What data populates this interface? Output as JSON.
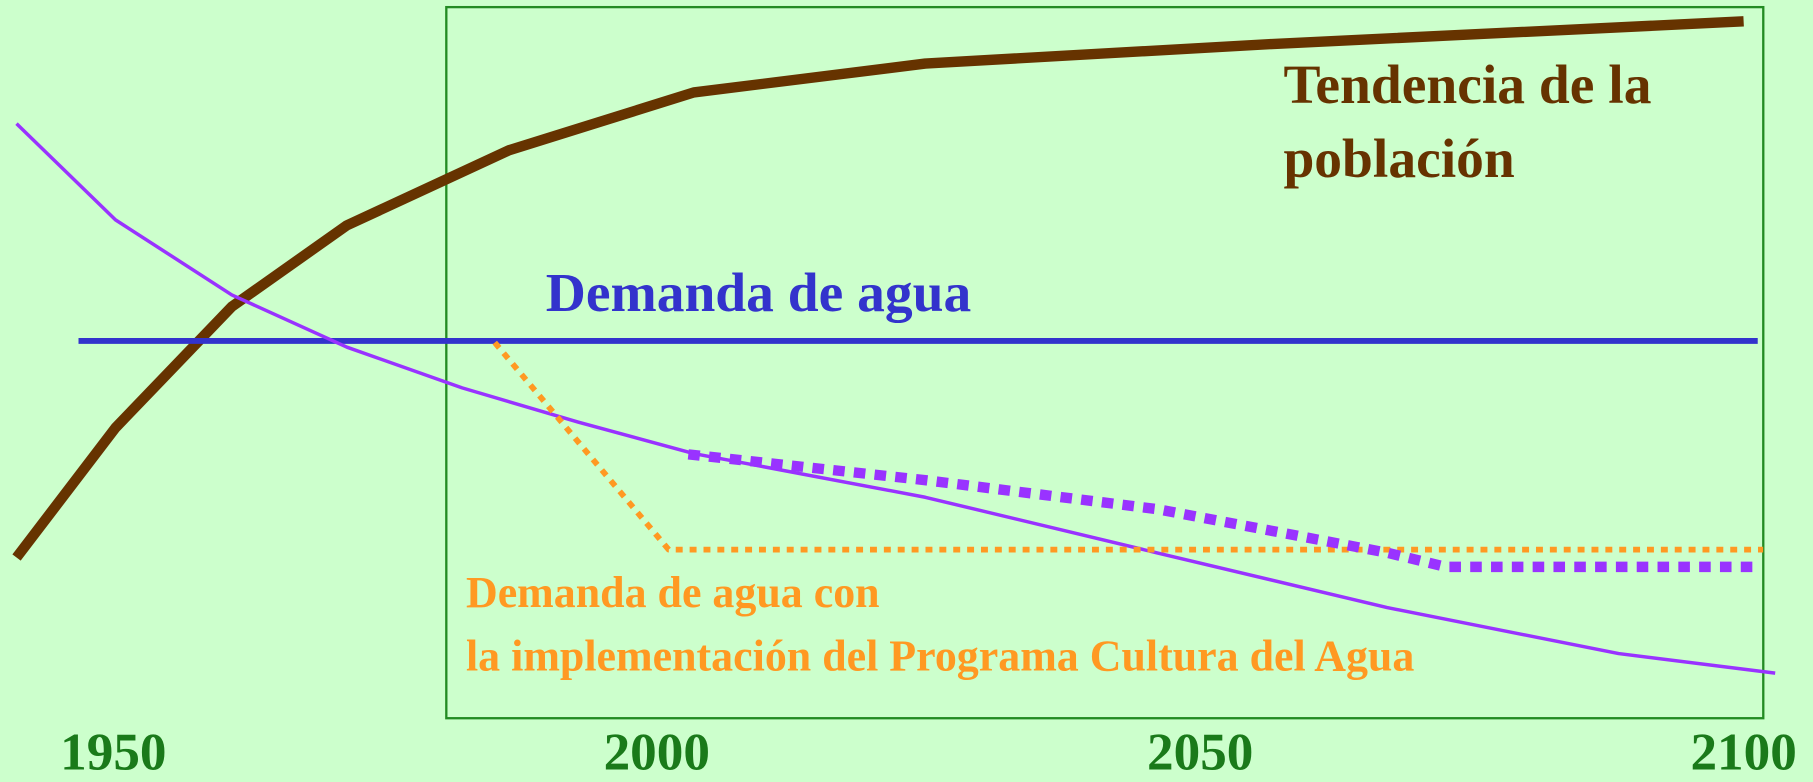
{
  "chart_data": {
    "type": "line",
    "xlim": [
      1939,
      2104
    ],
    "ylim": [
      0,
      100
    ],
    "xticks": [
      1950,
      2000,
      2050,
      2100
    ],
    "tick_color": "#1a7a1a",
    "series": [
      {
        "color": "#663300",
        "width": 9,
        "dash": null,
        "x": [
          1941.1,
          1950.2,
          1960.9,
          1971.5,
          1986.4,
          2003.4,
          2024.7,
          2056.6,
          2100
        ],
        "values": [
          28.7,
          45.3,
          60.8,
          71.2,
          80.8,
          88.2,
          91.9,
          94.4,
          97.3
        ]
      },
      {
        "color": "#3333cc",
        "width": 5,
        "dash": null,
        "x": [
          1946.8,
          2101.3
        ],
        "values": [
          56.4,
          56.4
        ]
      },
      {
        "color": "#9933ff",
        "width": 3,
        "dash": null,
        "x": [
          1941.1,
          1950.2,
          1960.9,
          1971.5,
          1982.1,
          1992.8,
          2003.4,
          2024.7,
          2046.0,
          2067.2,
          2088.5,
          2102.9
        ],
        "values": [
          84.2,
          71.9,
          62.3,
          55.6,
          50.4,
          46.0,
          42.0,
          36.4,
          29.3,
          22.3,
          16.4,
          13.9
        ]
      },
      {
        "color": "#ff9922",
        "width": 5,
        "dash": "6 6",
        "x": [
          1985.1,
          2001.1,
          2101.8
        ],
        "values": [
          56.2,
          29.7,
          29.7
        ]
      },
      {
        "color": "#9933ff",
        "width": 9,
        "dash": "10 8",
        "x": [
          2002.9,
          2024.7,
          2046.0,
          2067.2,
          2072.6,
          2101.3
        ],
        "values": [
          41.9,
          38.6,
          34.9,
          29.3,
          27.5,
          27.5
        ]
      }
    ],
    "annotations": [
      {
        "text": "Tendencia de la",
        "color": "#663300"
      },
      {
        "text": "población",
        "color": "#663300"
      },
      {
        "text": "Demanda de agua",
        "color": "#3333cc"
      },
      {
        "text": "Demanda de agua con",
        "color": "#ff9922"
      },
      {
        "text": "la implementación del Programa Cultura del Agua",
        "color": "#ff9922"
      }
    ]
  }
}
